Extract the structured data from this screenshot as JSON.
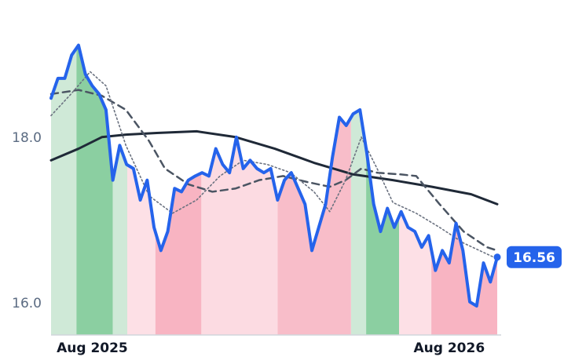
{
  "chart_data": {
    "type": "line",
    "ylim": [
      15.62,
      19.6
    ],
    "yticks": [
      {
        "value": 16,
        "label": "16.0"
      },
      {
        "value": 18,
        "label": "18.0"
      }
    ],
    "xlim": [
      0,
      65
    ],
    "xticks": [
      {
        "value": 6,
        "label": "Aug 2025"
      },
      {
        "value": 58,
        "label": "Aug 2026"
      }
    ],
    "regions": [
      {
        "start": 0,
        "end": 3.7,
        "color": "#cfe9d7"
      },
      {
        "start": 3.7,
        "end": 9.0,
        "color": "#8bcfa1"
      },
      {
        "start": 9.0,
        "end": 11.1,
        "color": "#cfe9d7"
      },
      {
        "start": 11.1,
        "end": 15.2,
        "color": "#fde0e6"
      },
      {
        "start": 15.2,
        "end": 21.9,
        "color": "#f8b4c2"
      },
      {
        "start": 21.9,
        "end": 33.0,
        "color": "#fcdbe2"
      },
      {
        "start": 33.0,
        "end": 43.7,
        "color": "#f8bdc9"
      },
      {
        "start": 43.7,
        "end": 45.9,
        "color": "#cfe9d7"
      },
      {
        "start": 45.9,
        "end": 50.7,
        "color": "#8bcfa1"
      },
      {
        "start": 50.7,
        "end": 55.4,
        "color": "#fde0e6"
      },
      {
        "start": 55.4,
        "end": 65,
        "color": "#f8b4c2"
      }
    ],
    "series": [
      {
        "color": "#2563eb",
        "style": "price",
        "x": [
          0,
          1,
          2,
          3,
          4,
          5,
          6,
          7,
          8,
          9,
          10,
          11,
          12,
          13,
          14,
          15,
          16,
          17,
          18,
          19,
          20,
          21,
          22,
          23,
          24,
          25,
          26,
          27,
          28,
          29,
          30,
          31,
          32,
          33,
          34,
          35,
          36,
          37,
          38,
          39,
          40,
          41,
          42,
          43,
          44,
          45,
          46,
          47,
          48,
          49,
          50,
          51,
          52,
          53,
          54,
          55,
          56,
          57,
          58,
          59,
          60,
          61,
          62,
          63,
          64,
          65
        ],
        "values": [
          18.48,
          18.72,
          18.72,
          19.0,
          19.12,
          18.77,
          18.63,
          18.53,
          18.34,
          17.49,
          17.91,
          17.68,
          17.63,
          17.25,
          17.49,
          16.92,
          16.64,
          16.87,
          17.39,
          17.35,
          17.49,
          17.54,
          17.58,
          17.54,
          17.87,
          17.68,
          17.58,
          18.01,
          17.63,
          17.73,
          17.63,
          17.58,
          17.63,
          17.25,
          17.49,
          17.58,
          17.39,
          17.2,
          16.64,
          16.92,
          17.2,
          17.77,
          18.25,
          18.15,
          18.29,
          18.34,
          17.82,
          17.2,
          16.87,
          17.15,
          16.92,
          17.11,
          16.92,
          16.87,
          16.68,
          16.82,
          16.4,
          16.64,
          16.49,
          16.97,
          16.64,
          16.02,
          15.97,
          16.49,
          16.26,
          16.56
        ]
      },
      {
        "color": "#1f2937",
        "style": "solid",
        "x": [
          0,
          4,
          7.4,
          10.9,
          15.4,
          21.2,
          26.9,
          32.6,
          38.3,
          44,
          49.8,
          55.5,
          61.2,
          65
        ],
        "values": [
          17.73,
          17.87,
          18.01,
          18.04,
          18.06,
          18.08,
          18.01,
          17.87,
          17.7,
          17.56,
          17.49,
          17.41,
          17.32,
          17.2
        ]
      },
      {
        "color": "#4b5563",
        "style": "dashed",
        "x": [
          0,
          4,
          7.4,
          10.9,
          14.3,
          16.6,
          20,
          23.5,
          26.9,
          30.3,
          33.8,
          37.2,
          40.6,
          42.9,
          45.2,
          47.5,
          50.9,
          53.2,
          56.6,
          60.1,
          63.5,
          65
        ],
        "values": [
          18.53,
          18.58,
          18.51,
          18.34,
          17.96,
          17.63,
          17.44,
          17.35,
          17.39,
          17.49,
          17.54,
          17.47,
          17.41,
          17.49,
          17.63,
          17.58,
          17.56,
          17.54,
          17.2,
          16.87,
          16.68,
          16.64
        ]
      },
      {
        "color": "#6b7280",
        "style": "dotted",
        "x": [
          0,
          2.9,
          5.7,
          8,
          10.9,
          14.3,
          17.7,
          21.2,
          24.6,
          28,
          31.5,
          34.9,
          38.3,
          40.6,
          42.9,
          45.2,
          47.5,
          49.8,
          53.2,
          56.6,
          60.1,
          65
        ],
        "values": [
          18.27,
          18.53,
          18.8,
          18.63,
          17.91,
          17.3,
          17.09,
          17.25,
          17.54,
          17.73,
          17.68,
          17.58,
          17.35,
          17.11,
          17.49,
          18.01,
          17.63,
          17.22,
          17.09,
          16.92,
          16.73,
          16.54
        ]
      }
    ]
  }
}
